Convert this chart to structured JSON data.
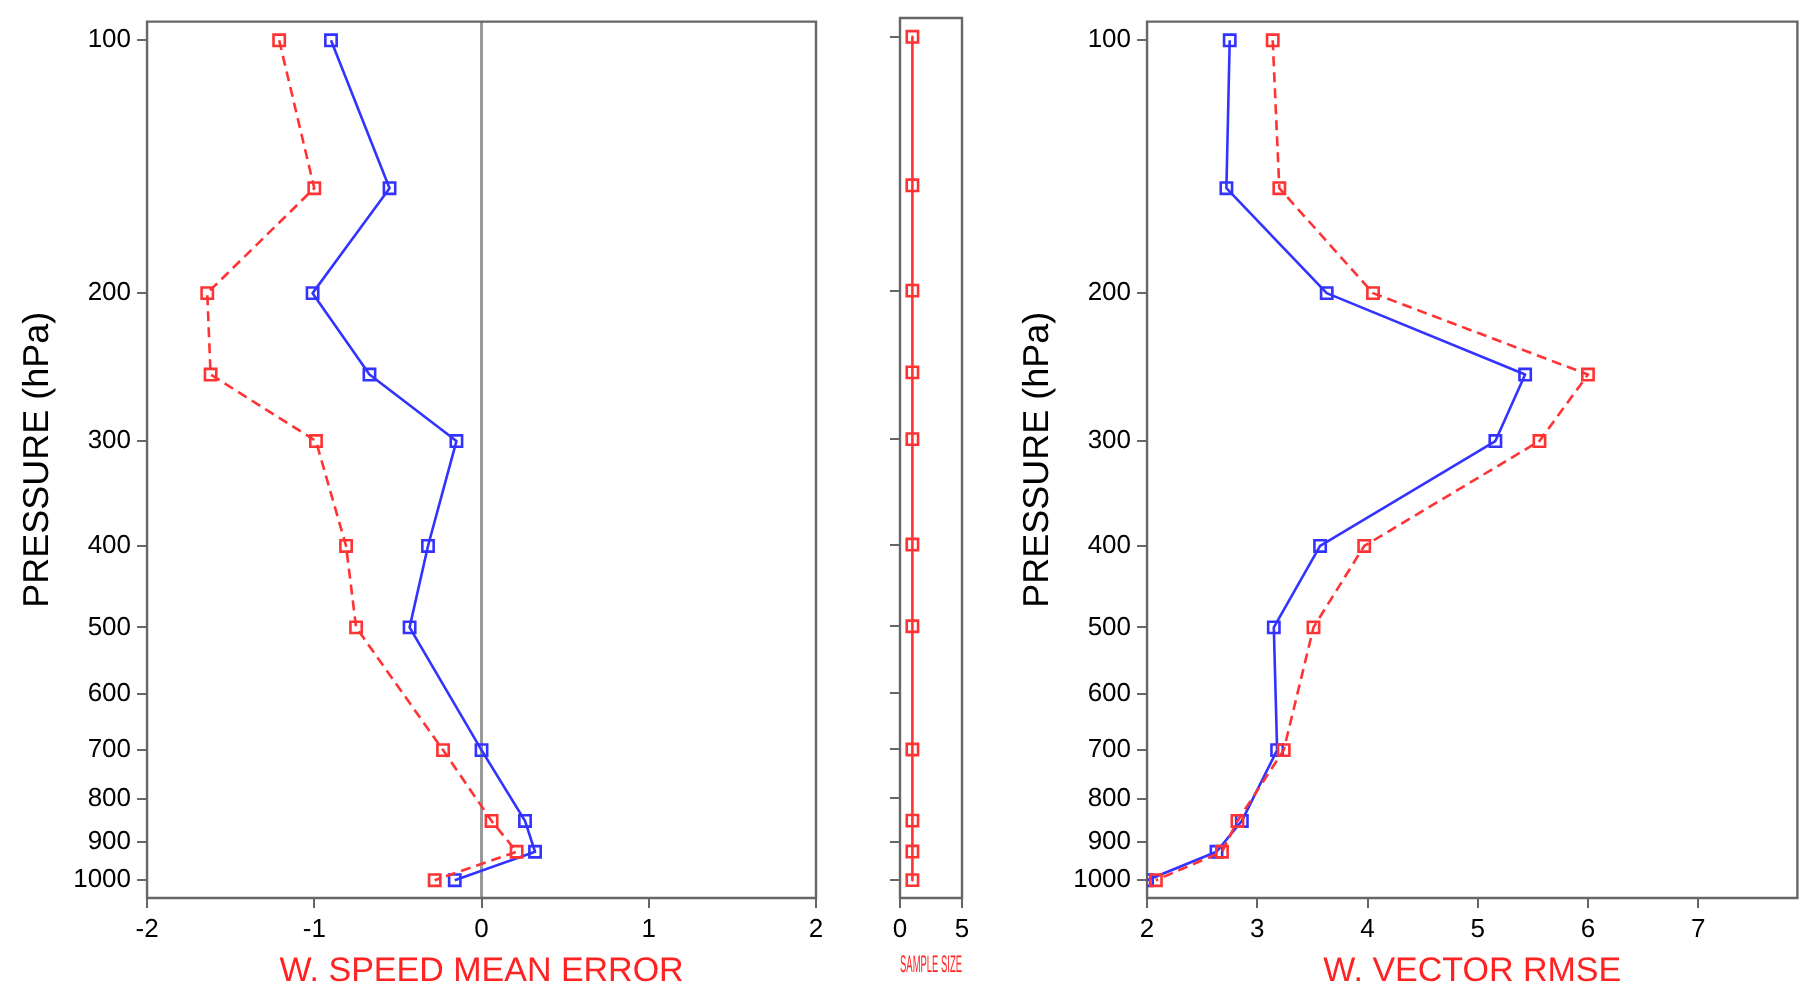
{
  "chart_data": [
    {
      "type": "line",
      "xlabel": "W. SPEED MEAN ERROR",
      "ylabel": "PRESSURE (hPa)",
      "xlim": [
        -2,
        2
      ],
      "xticks": [
        -2,
        -1,
        0,
        1,
        2
      ],
      "ylim": [
        1050,
        95
      ],
      "yticks": [
        100,
        200,
        300,
        400,
        500,
        600,
        700,
        800,
        900,
        1000
      ],
      "log": "y",
      "grid": false,
      "marker": "square",
      "ref_lines": [
        {
          "axis": "x",
          "value": 0,
          "color": "#999999"
        }
      ],
      "series": [
        {
          "color": "#ff3333",
          "line_style": "dashed",
          "x": [
            -1.21,
            -1.0,
            -1.64,
            -1.62,
            -0.99,
            -0.81,
            -0.75,
            -0.23,
            0.06,
            0.21,
            -0.28
          ],
          "values": [
            100,
            150,
            200,
            250,
            300,
            400,
            500,
            700,
            850,
            925,
            1000
          ]
        },
        {
          "color": "#3333ff",
          "line_style": "solid",
          "x": [
            -0.9,
            -0.55,
            -1.01,
            -0.67,
            -0.15,
            -0.32,
            -0.43,
            0.0,
            0.26,
            0.32,
            -0.16
          ],
          "values": [
            100,
            150,
            200,
            250,
            300,
            400,
            500,
            700,
            850,
            925,
            1000
          ]
        }
      ]
    },
    {
      "type": "line",
      "xlabel": "SAMPLE SIZE",
      "xlim": [
        0,
        5
      ],
      "xticks": [
        0,
        5
      ],
      "ylim": [
        1050,
        95
      ],
      "yticks": [
        100,
        200,
        300,
        400,
        500,
        600,
        700,
        800,
        900,
        1000
      ],
      "log": "y",
      "grid": false,
      "marker": "square",
      "tick_labels": "x",
      "series": [
        {
          "color": "#ff3333",
          "line_style": "solid",
          "x": [
            1,
            1,
            1,
            1,
            1,
            1,
            1,
            1,
            1,
            1,
            1
          ],
          "values": [
            100,
            150,
            200,
            250,
            300,
            400,
            500,
            700,
            850,
            925,
            1000
          ]
        }
      ]
    },
    {
      "type": "line",
      "xlabel": "W. VECTOR RMSE",
      "ylabel": "PRESSURE (hPa)",
      "xlim": [
        2,
        7.9
      ],
      "xticks": [
        2,
        3,
        4,
        5,
        6,
        7
      ],
      "ylim": [
        1050,
        95
      ],
      "yticks": [
        100,
        200,
        300,
        400,
        500,
        600,
        700,
        800,
        900,
        1000
      ],
      "log": "y",
      "grid": false,
      "marker": "square",
      "series": [
        {
          "color": "#ff3333",
          "line_style": "dashed",
          "x": [
            3.14,
            3.2,
            4.05,
            6.0,
            5.56,
            3.97,
            3.51,
            3.24,
            2.82,
            2.68,
            2.08
          ],
          "values": [
            100,
            150,
            200,
            250,
            300,
            400,
            500,
            700,
            850,
            925,
            1000
          ]
        },
        {
          "color": "#3333ff",
          "line_style": "solid",
          "x": [
            2.75,
            2.72,
            3.63,
            5.43,
            5.16,
            3.57,
            3.15,
            3.18,
            2.86,
            2.63,
            2.0
          ],
          "values": [
            100,
            150,
            200,
            250,
            300,
            400,
            500,
            700,
            850,
            925,
            1000
          ]
        }
      ]
    }
  ]
}
